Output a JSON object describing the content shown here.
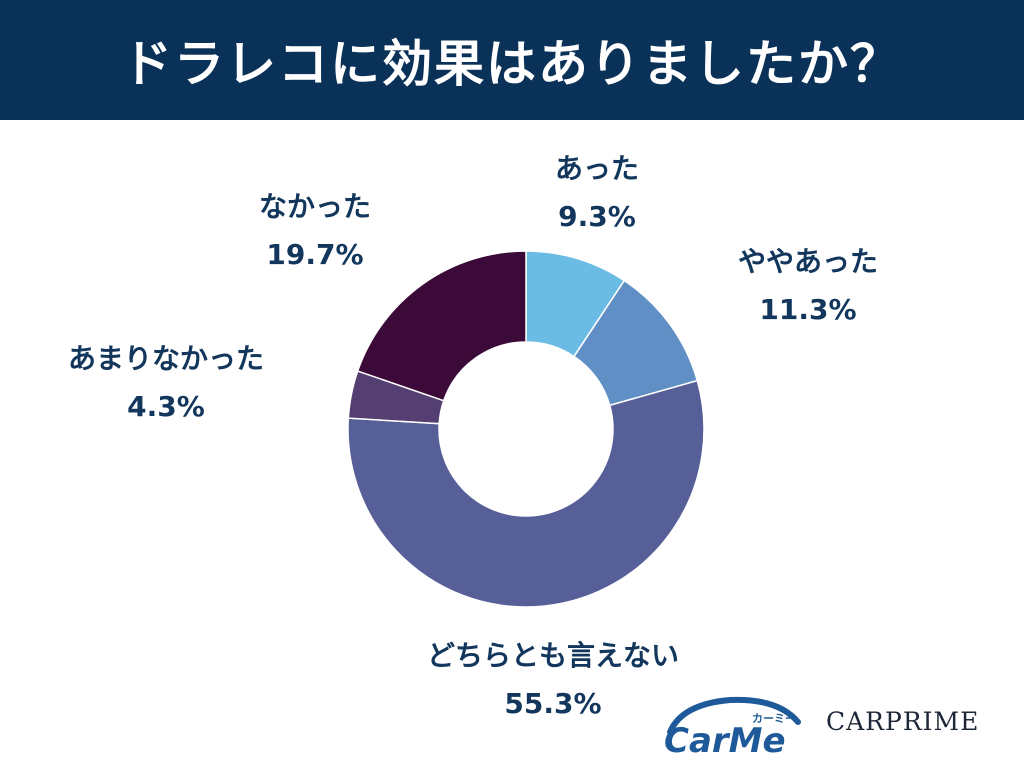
{
  "header": {
    "title": "ドラレコに効果はありましたか？"
  },
  "chart_data": {
    "type": "pie",
    "title": "ドラレコに効果はありましたか？",
    "donut": true,
    "unit": "%",
    "slices": [
      {
        "label": "あった",
        "value": 9.3,
        "display": "9.3%",
        "color": "#6bbce5"
      },
      {
        "label": "ややあった",
        "value": 11.3,
        "display": "11.3%",
        "color": "#5f8fc4"
      },
      {
        "label": "どちらとも言えない",
        "value": 55.3,
        "display": "55.3%",
        "color": "#575f98"
      },
      {
        "label": "あまりなかった",
        "value": 4.3,
        "display": "4.3%",
        "color": "#543e72"
      },
      {
        "label": "なかった",
        "value": 19.7,
        "display": "19.7%",
        "color": "#3c0a38"
      }
    ]
  },
  "logos": {
    "carme_text": "CarMe",
    "carme_kana": "カーミー",
    "carprime_text": "CARPRIME"
  }
}
